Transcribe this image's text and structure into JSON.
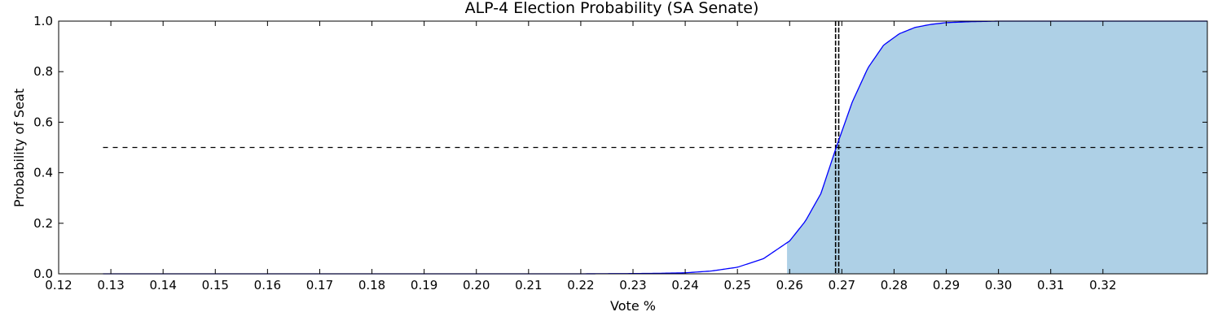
{
  "chart_data": {
    "type": "area",
    "title": "ALP-4 Election Probability (SA Senate)",
    "xlabel": "Vote %",
    "ylabel": "Probability of Seat",
    "xlim": [
      0.12,
      0.34
    ],
    "ylim": [
      0,
      1.0
    ],
    "x_ticks": [
      {
        "value": 0.12,
        "label": "0.12"
      },
      {
        "value": 0.13,
        "label": "0.13"
      },
      {
        "value": 0.14,
        "label": "0.14"
      },
      {
        "value": 0.15,
        "label": "0.15"
      },
      {
        "value": 0.16,
        "label": "0.16"
      },
      {
        "value": 0.17,
        "label": "0.17"
      },
      {
        "value": 0.18,
        "label": "0.18"
      },
      {
        "value": 0.19,
        "label": "0.19"
      },
      {
        "value": 0.2,
        "label": "0.20"
      },
      {
        "value": 0.21,
        "label": "0.21"
      },
      {
        "value": 0.22,
        "label": "0.22"
      },
      {
        "value": 0.23,
        "label": "0.23"
      },
      {
        "value": 0.24,
        "label": "0.24"
      },
      {
        "value": 0.25,
        "label": "0.25"
      },
      {
        "value": 0.26,
        "label": "0.26"
      },
      {
        "value": 0.27,
        "label": "0.27"
      },
      {
        "value": 0.28,
        "label": "0.28"
      },
      {
        "value": 0.29,
        "label": "0.29"
      },
      {
        "value": 0.3,
        "label": "0.30"
      },
      {
        "value": 0.31,
        "label": "0.31"
      },
      {
        "value": 0.32,
        "label": "0.32"
      }
    ],
    "y_ticks": [
      {
        "value": 0.0,
        "label": "0.0"
      },
      {
        "value": 0.2,
        "label": "0.2"
      },
      {
        "value": 0.4,
        "label": "0.4"
      },
      {
        "value": 0.6,
        "label": "0.6"
      },
      {
        "value": 0.8,
        "label": "0.8"
      },
      {
        "value": 1.0,
        "label": "1.0"
      }
    ],
    "series": [
      {
        "x": [
          0.1285,
          0.2,
          0.22,
          0.23,
          0.235,
          0.24,
          0.245,
          0.25,
          0.255,
          0.26,
          0.263,
          0.266,
          0.269,
          0.272,
          0.275,
          0.278,
          0.281,
          0.284,
          0.287,
          0.29,
          0.295,
          0.3,
          0.34
        ],
        "y": [
          0.0,
          0.0,
          0.0,
          0.001,
          0.002,
          0.004,
          0.011,
          0.026,
          0.06,
          0.13,
          0.208,
          0.318,
          0.505,
          0.68,
          0.815,
          0.905,
          0.95,
          0.975,
          0.987,
          0.994,
          0.998,
          1.0,
          1.0
        ]
      }
    ],
    "shaded_from_x": 0.2595,
    "reference_lines": {
      "horizontal_y": 0.5,
      "horizontal_from_x": 0.1285,
      "vertical_x": [
        0.2688,
        0.2694
      ]
    },
    "colors": {
      "line": "#0000ff",
      "fill": "#aed0e6",
      "reference": "#000000",
      "axes": "#000000"
    },
    "grid": false,
    "legend": "none"
  }
}
